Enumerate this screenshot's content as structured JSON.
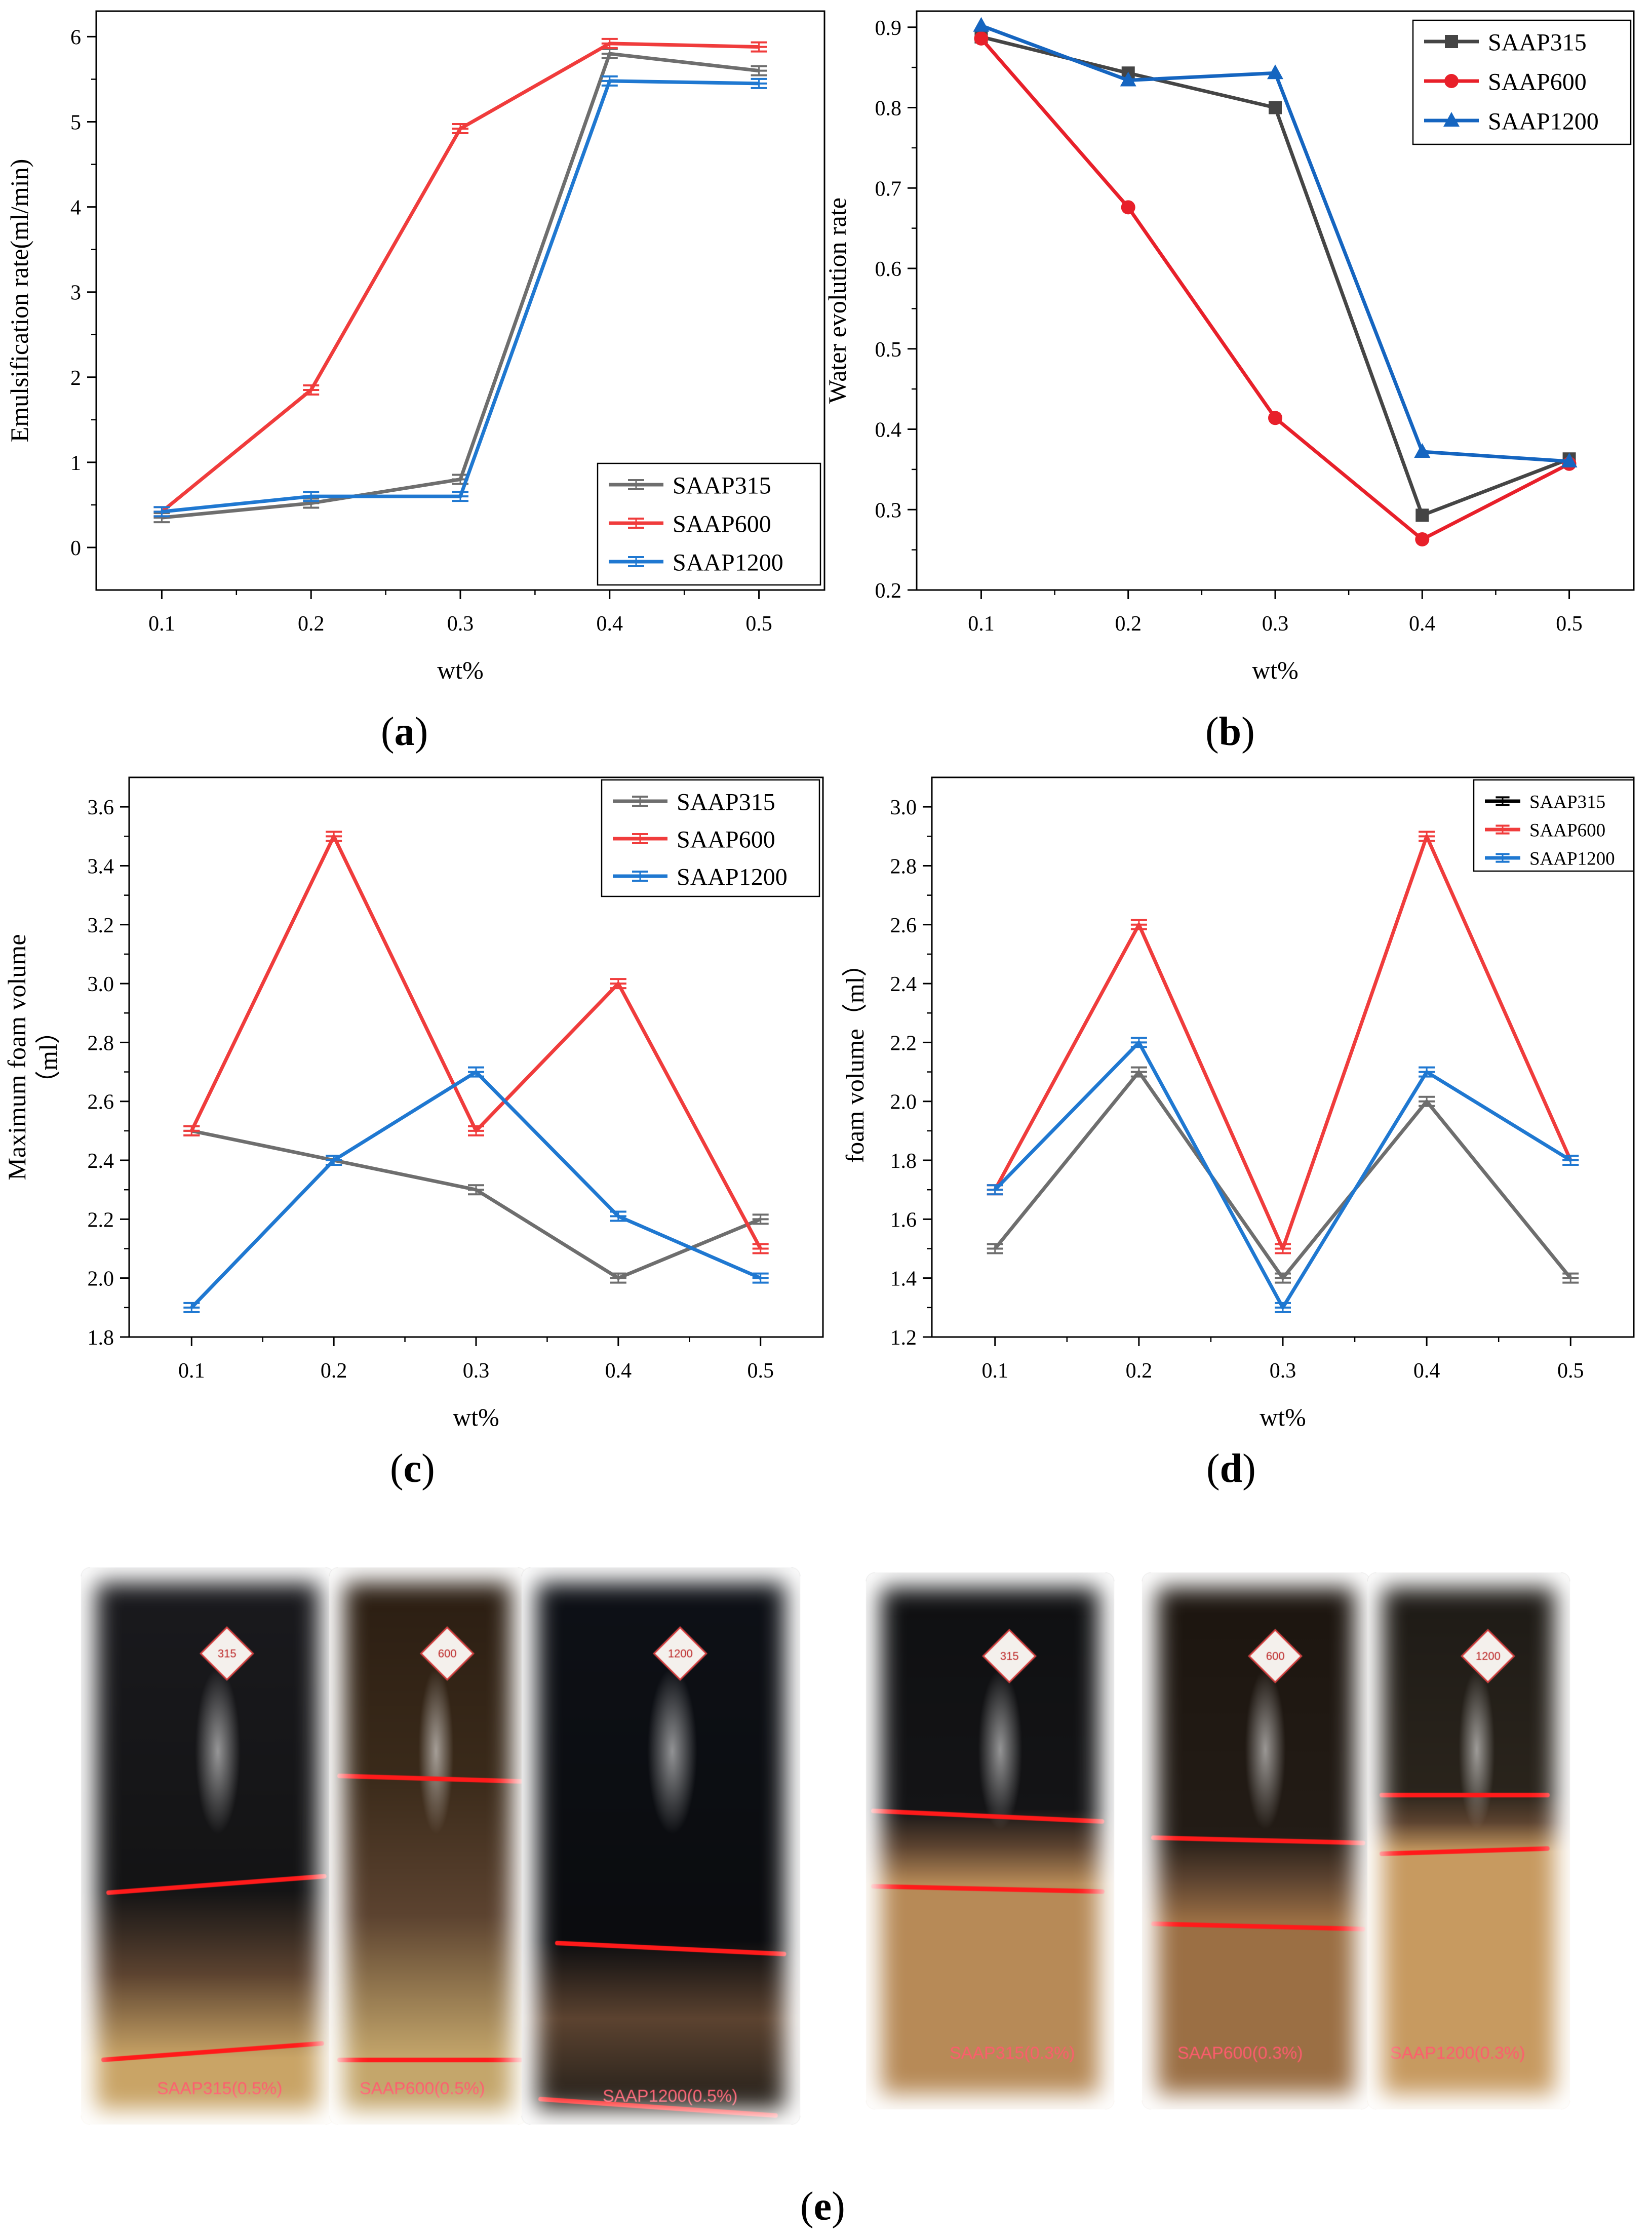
{
  "chart_data": [
    {
      "id": "a",
      "type": "line",
      "panel_label": "a",
      "xlabel": "wt%",
      "ylabel": "Emulsification rate(ml/min)",
      "x": [
        0.1,
        0.2,
        0.3,
        0.4,
        0.5
      ],
      "xticks": [
        "0.1",
        "0.2",
        "0.3",
        "0.4",
        "0.5"
      ],
      "ylim": [
        -0.5,
        6.3
      ],
      "yticks": [
        0,
        1,
        2,
        3,
        4,
        5,
        6
      ],
      "legend_position": "bottom-right",
      "series": [
        {
          "name": "SAAP315",
          "color": "#6e6e6e",
          "marker": "errbar",
          "values": [
            0.35,
            0.52,
            0.8,
            5.8,
            5.6
          ]
        },
        {
          "name": "SAAP600",
          "color": "#f03c3c",
          "marker": "errbar",
          "values": [
            0.42,
            1.85,
            4.92,
            5.92,
            5.88
          ]
        },
        {
          "name": "SAAP1200",
          "color": "#1f78d1",
          "marker": "errbar",
          "values": [
            0.42,
            0.6,
            0.6,
            5.48,
            5.45
          ]
        }
      ]
    },
    {
      "id": "b",
      "type": "line",
      "panel_label": "b",
      "xlabel": "wt%",
      "ylabel": "Water evolution rate",
      "x": [
        0.1,
        0.2,
        0.3,
        0.4,
        0.5
      ],
      "xticks": [
        "0.1",
        "0.2",
        "0.3",
        "0.4",
        "0.5"
      ],
      "ylim": [
        0.2,
        0.92
      ],
      "yticks": [
        0.2,
        0.3,
        0.4,
        0.5,
        0.6,
        0.7,
        0.8,
        0.9
      ],
      "legend_position": "top-right",
      "series": [
        {
          "name": "SAAP315",
          "color": "#454545",
          "marker": "square",
          "values": [
            0.888,
            0.843,
            0.8,
            0.293,
            0.363
          ]
        },
        {
          "name": "SAAP600",
          "color": "#e8202a",
          "marker": "circle",
          "values": [
            0.886,
            0.676,
            0.414,
            0.263,
            0.357
          ]
        },
        {
          "name": "SAAP1200",
          "color": "#1565c0",
          "marker": "triangle",
          "values": [
            0.902,
            0.834,
            0.843,
            0.372,
            0.36
          ]
        }
      ]
    },
    {
      "id": "c",
      "type": "line",
      "panel_label": "c",
      "xlabel": "wt%",
      "ylabel_lines": [
        "Maximum foam volume",
        "（ml）"
      ],
      "x": [
        0.1,
        0.2,
        0.3,
        0.4,
        0.5
      ],
      "xticks": [
        "0.1",
        "0.2",
        "0.3",
        "0.4",
        "0.5"
      ],
      "ylim": [
        1.8,
        3.7
      ],
      "yticks": [
        1.8,
        2.0,
        2.2,
        2.4,
        2.6,
        2.8,
        3.0,
        3.2,
        3.4,
        3.6
      ],
      "legend_position": "top-right",
      "series": [
        {
          "name": "SAAP315",
          "color": "#6e6e6e",
          "marker": "errbar",
          "values": [
            2.5,
            2.4,
            2.3,
            2.0,
            2.2
          ]
        },
        {
          "name": "SAAP600",
          "color": "#f03c3c",
          "marker": "errbar",
          "values": [
            2.5,
            3.5,
            2.5,
            3.0,
            2.1
          ]
        },
        {
          "name": "SAAP1200",
          "color": "#1f78d1",
          "marker": "errbar",
          "values": [
            1.9,
            2.4,
            2.7,
            2.21,
            2.0
          ]
        }
      ]
    },
    {
      "id": "d",
      "type": "line",
      "panel_label": "d",
      "xlabel": "wt%",
      "ylabel": "foam volume（ml）",
      "x": [
        0.1,
        0.2,
        0.3,
        0.4,
        0.5
      ],
      "xticks": [
        "0.1",
        "0.2",
        "0.3",
        "0.4",
        "0.5"
      ],
      "ylim": [
        1.2,
        3.1
      ],
      "yticks": [
        1.2,
        1.4,
        1.6,
        1.8,
        2.0,
        2.2,
        2.4,
        2.6,
        2.8,
        3.0
      ],
      "legend_position": "top-right",
      "series": [
        {
          "name": "SAAP315",
          "color": "#6e6e6e",
          "marker": "errbar",
          "legend_color": "#000000",
          "values": [
            1.5,
            2.1,
            1.4,
            2.0,
            1.4
          ]
        },
        {
          "name": "SAAP600",
          "color": "#f03c3c",
          "marker": "errbar",
          "values": [
            1.7,
            2.6,
            1.5,
            2.9,
            1.8
          ]
        },
        {
          "name": "SAAP1200",
          "color": "#1f78d1",
          "marker": "errbar",
          "values": [
            1.7,
            2.2,
            1.3,
            2.1,
            1.8
          ]
        }
      ]
    }
  ],
  "photos": {
    "panel_label": "e",
    "tubes": [
      {
        "caption": "SAAP315(0.5%)",
        "tag": "315"
      },
      {
        "caption": "SAAP600(0.5%)",
        "tag": "600"
      },
      {
        "caption": "SAAP1200(0.5%)",
        "tag": "1200"
      },
      {
        "caption": "SAAP315(0.3%)",
        "tag": "315"
      },
      {
        "caption": "SAAP600(0.3%)",
        "tag": "600"
      },
      {
        "caption": "SAAP1200(0.3%)",
        "tag": "1200"
      }
    ]
  }
}
